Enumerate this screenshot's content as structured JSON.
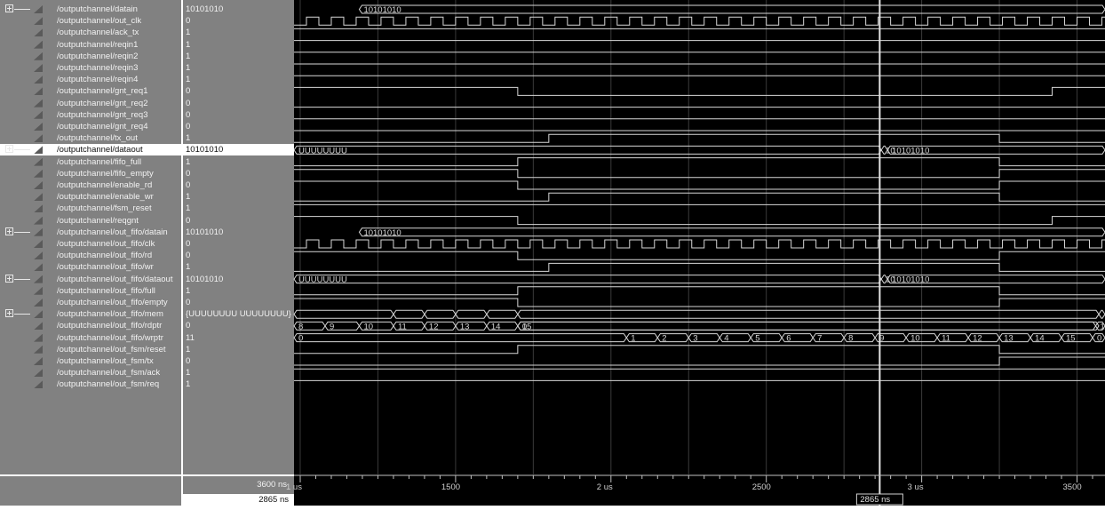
{
  "colors": {
    "panel": "#818181",
    "wave": "#000000",
    "trace": "#d8d8d8",
    "grid": "#3a3a3a",
    "cursor": "#e5e5e5",
    "selected": "#ffffff"
  },
  "signals": [
    {
      "name": "/outputchannel/datain",
      "value": "10101010",
      "expandable": true
    },
    {
      "name": "/outputchannel/out_clk",
      "value": "0",
      "expandable": false
    },
    {
      "name": "/outputchannel/ack_tx",
      "value": "1",
      "expandable": false
    },
    {
      "name": "/outputchannel/reqin1",
      "value": "1",
      "expandable": false
    },
    {
      "name": "/outputchannel/reqin2",
      "value": "1",
      "expandable": false
    },
    {
      "name": "/outputchannel/reqin3",
      "value": "1",
      "expandable": false
    },
    {
      "name": "/outputchannel/reqin4",
      "value": "1",
      "expandable": false
    },
    {
      "name": "/outputchannel/gnt_req1",
      "value": "0",
      "expandable": false
    },
    {
      "name": "/outputchannel/gnt_req2",
      "value": "0",
      "expandable": false
    },
    {
      "name": "/outputchannel/gnt_req3",
      "value": "0",
      "expandable": false
    },
    {
      "name": "/outputchannel/gnt_req4",
      "value": "0",
      "expandable": false
    },
    {
      "name": "/outputchannel/tx_out",
      "value": "1",
      "expandable": false
    },
    {
      "name": "/outputchannel/dataout",
      "value": "10101010",
      "expandable": true,
      "selected": true
    },
    {
      "name": "/outputchannel/fifo_full",
      "value": "1",
      "expandable": false
    },
    {
      "name": "/outputchannel/fifo_empty",
      "value": "0",
      "expandable": false
    },
    {
      "name": "/outputchannel/enable_rd",
      "value": "0",
      "expandable": false
    },
    {
      "name": "/outputchannel/enable_wr",
      "value": "1",
      "expandable": false
    },
    {
      "name": "/outputchannel/fsm_reset",
      "value": "1",
      "expandable": false
    },
    {
      "name": "/outputchannel/reqgnt",
      "value": "0",
      "expandable": false
    },
    {
      "name": "/outputchannel/out_fifo/datain",
      "value": "10101010",
      "expandable": true
    },
    {
      "name": "/outputchannel/out_fifo/clk",
      "value": "0",
      "expandable": false
    },
    {
      "name": "/outputchannel/out_fifo/rd",
      "value": "0",
      "expandable": false
    },
    {
      "name": "/outputchannel/out_fifo/wr",
      "value": "1",
      "expandable": false
    },
    {
      "name": "/outputchannel/out_fifo/dataout",
      "value": "10101010",
      "expandable": true
    },
    {
      "name": "/outputchannel/out_fifo/full",
      "value": "1",
      "expandable": false
    },
    {
      "name": "/outputchannel/out_fifo/empty",
      "value": "0",
      "expandable": false
    },
    {
      "name": "/outputchannel/out_fifo/mem",
      "value": "{UUUUUUUU UUUUUUUU}",
      "expandable": true
    },
    {
      "name": "/outputchannel/out_fifo/rdptr",
      "value": "0",
      "expandable": false
    },
    {
      "name": "/outputchannel/out_fifo/wrptr",
      "value": "11",
      "expandable": false
    },
    {
      "name": "/outputchannel/out_fsm/reset",
      "value": "1",
      "expandable": false
    },
    {
      "name": "/outputchannel/out_fsm/tx",
      "value": "0",
      "expandable": false
    },
    {
      "name": "/outputchannel/out_fsm/ack",
      "value": "1",
      "expandable": false
    },
    {
      "name": "/outputchannel/out_fsm/req",
      "value": "1",
      "expandable": false
    }
  ],
  "wave_labels": {
    "datain_top": "10101010",
    "dataout_pre": "UUUUUUUU",
    "dataout_post_a": "10",
    "dataout_post_b": "10101010",
    "fifo_datain": "10101010",
    "fifo_dataout_pre": "UUUUUUUU",
    "fifo_dataout_post_a": "10",
    "fifo_dataout_post_b": "10101010",
    "rdptr_values": [
      "8",
      "9",
      "10",
      "11",
      "12",
      "13",
      "14",
      "15",
      "0",
      "1"
    ],
    "wrptr_values": [
      "0",
      "1",
      "2",
      "3",
      "4",
      "5",
      "6",
      "7",
      "8",
      "9",
      "10",
      "11",
      "12",
      "13",
      "14",
      "15",
      "0"
    ]
  },
  "timeline": {
    "end_time": "3600 ns",
    "cursor_time": "2865 ns",
    "cursor_box": "2865 ns",
    "major_ticks": [
      {
        "label": "1 us",
        "t": 1000
      },
      {
        "label": "1500",
        "t": 1500
      },
      {
        "label": "2 us",
        "t": 2000
      },
      {
        "label": "2500",
        "t": 2500
      },
      {
        "label": "3 us",
        "t": 3000
      },
      {
        "label": "3500",
        "t": 3500
      }
    ],
    "t_start": 980,
    "t_end": 3590,
    "cursor_t": 2865
  }
}
